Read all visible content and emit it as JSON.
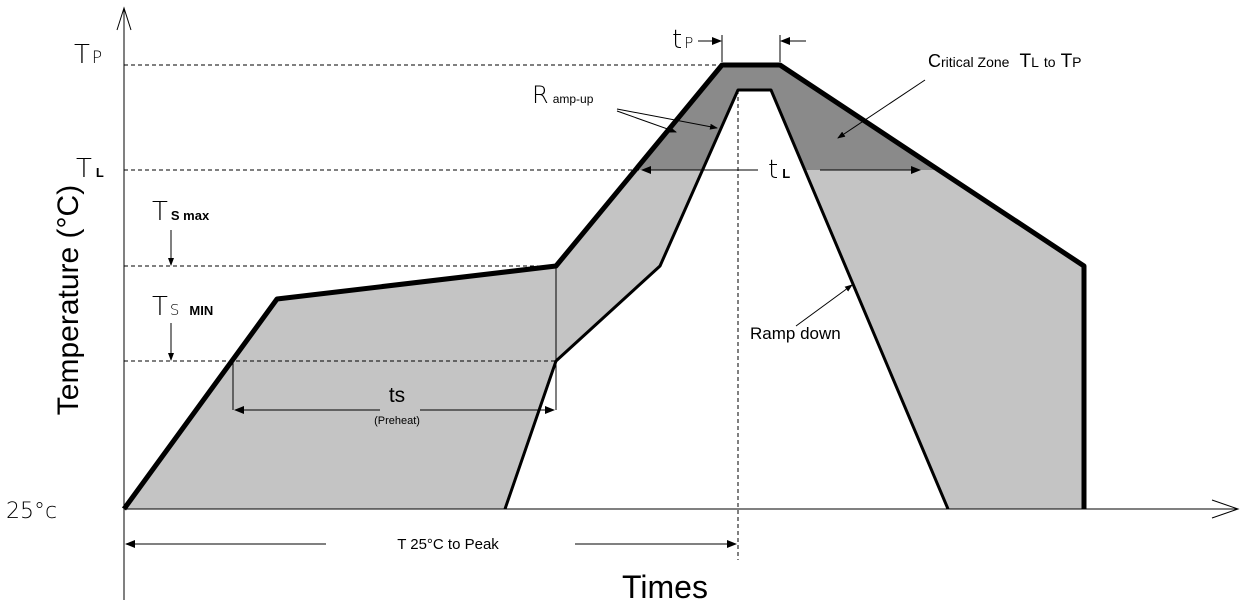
{
  "axes": {
    "y_label": "Temperature (°C)",
    "x_label": "Times",
    "origin_label": "25°c"
  },
  "levels": {
    "tp": {
      "main": "T",
      "sub": "P"
    },
    "tl": {
      "main": "T",
      "sub": "L"
    },
    "ts_max": {
      "main": "T",
      "sub": "S max"
    },
    "ts_min": {
      "main": "T",
      "sub1": "S",
      "sub2": "MIN"
    }
  },
  "annotations": {
    "tp_time": {
      "main": "t",
      "sub": "P"
    },
    "tl_time": {
      "main": "t",
      "sub": "L"
    },
    "critical_zone": {
      "first": "C",
      "rest": "ritical Zone",
      "tl_main": "T",
      "tl_sub": "L",
      "to": "to",
      "tp_main": "T",
      "tp_sub": "P"
    },
    "ramp_up": {
      "first": "R",
      "rest": "amp-up"
    },
    "ramp_down": "Ramp down",
    "preheat": {
      "main": "ts",
      "sub": "(Preheat)"
    },
    "to_peak": "T 25°C to Peak"
  },
  "colors": {
    "process_window": "#c4c4c4",
    "critical_zone": "#8a8a8a",
    "line": "#000000"
  }
}
